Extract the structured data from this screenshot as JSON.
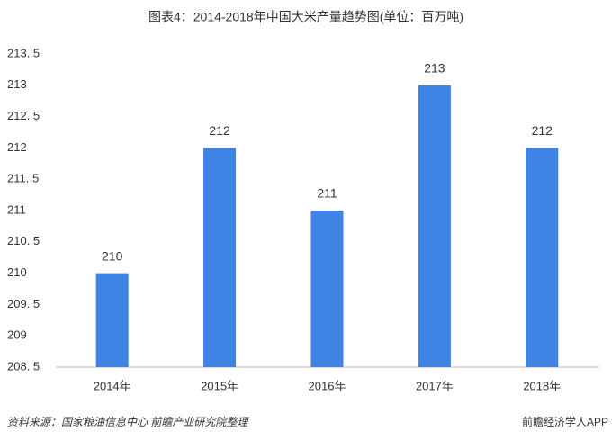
{
  "chart_data": {
    "type": "bar",
    "title": "图表4：2014-2018年中国大米产量趋势图(单位：百万吨)",
    "categories": [
      "2014年",
      "2015年",
      "2016年",
      "2017年",
      "2018年"
    ],
    "values": [
      210,
      212,
      211,
      213,
      212
    ],
    "color": "#3f84e5",
    "ylim": [
      208.5,
      213.5
    ],
    "yticks": [
      {
        "value": 208.5,
        "label": "208. 5"
      },
      209,
      {
        "value": 209.5,
        "label": "209. 5"
      },
      210,
      {
        "value": 210.5,
        "label": "210. 5"
      },
      211,
      {
        "value": 211.5,
        "label": "211. 5"
      },
      212,
      {
        "value": 212.5,
        "label": "212. 5"
      },
      213,
      {
        "value": 213.5,
        "label": "213. 5"
      }
    ],
    "grid": false,
    "source": "资料来源：国家粮油信息中心 前瞻产业研究院整理",
    "brand": "前瞻经济学人APP"
  }
}
